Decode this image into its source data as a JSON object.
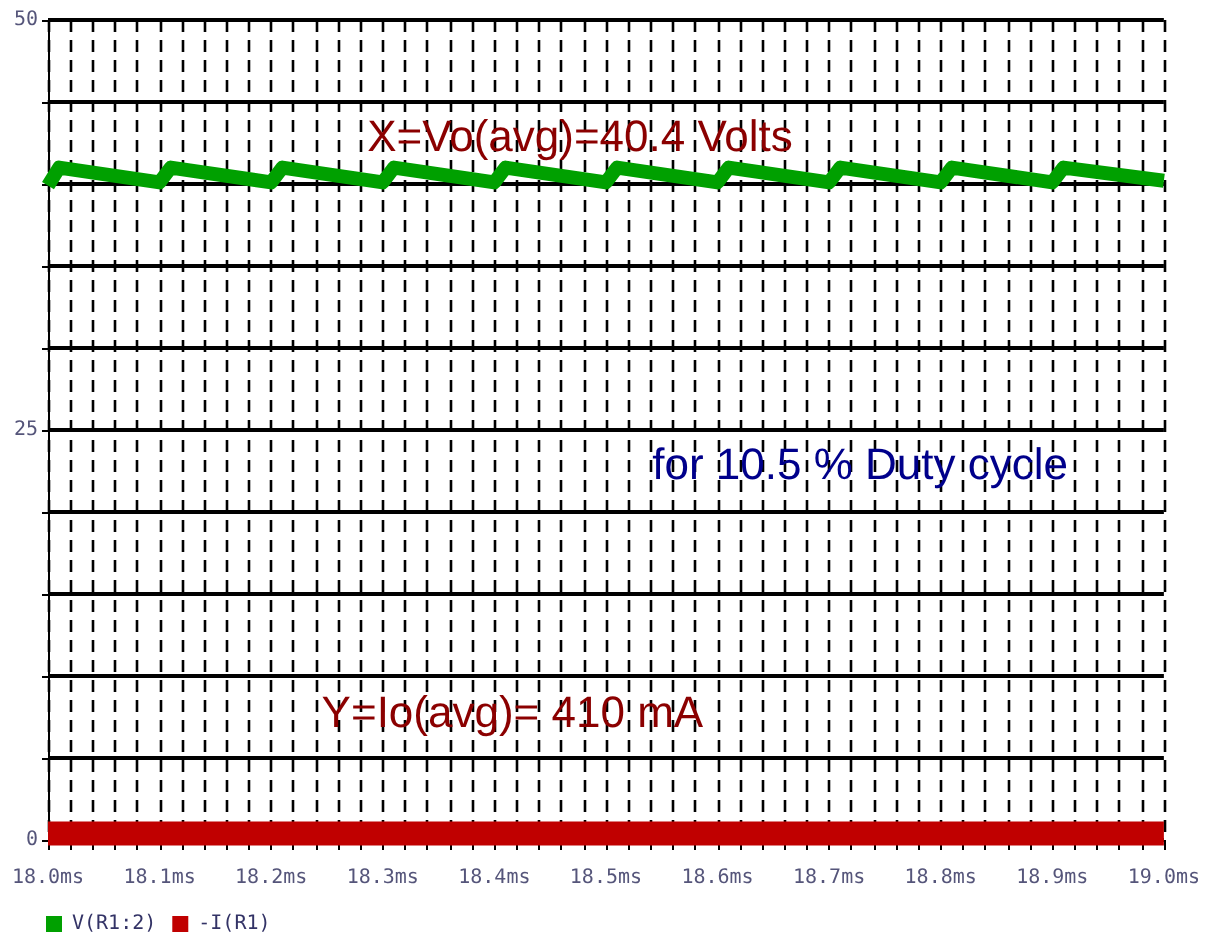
{
  "chart_data": {
    "type": "line",
    "x": [
      18.0,
      18.01,
      18.1,
      18.11,
      18.2,
      18.21,
      18.3,
      18.31,
      18.4,
      18.41,
      18.5,
      18.51,
      18.6,
      18.61,
      18.7,
      18.71,
      18.8,
      18.81,
      18.9,
      18.91,
      19.0
    ],
    "series": [
      {
        "name": "V(R1:2)",
        "color": "#00a000",
        "values": [
          39.9,
          41.0,
          40.1,
          41.0,
          40.1,
          41.0,
          40.1,
          41.0,
          40.1,
          41.0,
          40.1,
          41.0,
          40.1,
          41.0,
          40.1,
          41.0,
          40.1,
          41.0,
          40.1,
          41.0,
          40.2
        ]
      },
      {
        "name": "-I(R1)",
        "color": "#c00000",
        "x": [
          18.0,
          19.0
        ],
        "values": [
          0.4,
          0.4
        ]
      }
    ],
    "xlim": [
      18.0,
      19.0
    ],
    "xticks": [
      {
        "value": 18.0,
        "label": "18.0ms"
      },
      {
        "value": 18.02,
        "label": null
      },
      {
        "value": 18.04,
        "label": null
      },
      {
        "value": 18.06,
        "label": null
      },
      {
        "value": 18.08,
        "label": null
      },
      {
        "value": 18.1,
        "label": "18.1ms"
      },
      {
        "value": 18.12,
        "label": null
      },
      {
        "value": 18.14,
        "label": null
      },
      {
        "value": 18.16,
        "label": null
      },
      {
        "value": 18.18,
        "label": null
      },
      {
        "value": 18.2,
        "label": "18.2ms"
      },
      {
        "value": 18.22,
        "label": null
      },
      {
        "value": 18.24,
        "label": null
      },
      {
        "value": 18.26,
        "label": null
      },
      {
        "value": 18.28,
        "label": null
      },
      {
        "value": 18.3,
        "label": "18.3ms"
      },
      {
        "value": 18.32,
        "label": null
      },
      {
        "value": 18.34,
        "label": null
      },
      {
        "value": 18.36,
        "label": null
      },
      {
        "value": 18.38,
        "label": null
      },
      {
        "value": 18.4,
        "label": "18.4ms"
      },
      {
        "value": 18.42,
        "label": null
      },
      {
        "value": 18.44,
        "label": null
      },
      {
        "value": 18.46,
        "label": null
      },
      {
        "value": 18.48,
        "label": null
      },
      {
        "value": 18.5,
        "label": "18.5ms"
      },
      {
        "value": 18.52,
        "label": null
      },
      {
        "value": 18.54,
        "label": null
      },
      {
        "value": 18.56,
        "label": null
      },
      {
        "value": 18.58,
        "label": null
      },
      {
        "value": 18.6,
        "label": "18.6ms"
      },
      {
        "value": 18.62,
        "label": null
      },
      {
        "value": 18.64,
        "label": null
      },
      {
        "value": 18.66,
        "label": null
      },
      {
        "value": 18.68,
        "label": null
      },
      {
        "value": 18.7,
        "label": "18.7ms"
      },
      {
        "value": 18.72,
        "label": null
      },
      {
        "value": 18.74,
        "label": null
      },
      {
        "value": 18.76,
        "label": null
      },
      {
        "value": 18.78,
        "label": null
      },
      {
        "value": 18.8,
        "label": "18.8ms"
      },
      {
        "value": 18.82,
        "label": null
      },
      {
        "value": 18.84,
        "label": null
      },
      {
        "value": 18.86,
        "label": null
      },
      {
        "value": 18.88,
        "label": null
      },
      {
        "value": 18.9,
        "label": "18.9ms"
      },
      {
        "value": 18.92,
        "label": null
      },
      {
        "value": 18.94,
        "label": null
      },
      {
        "value": 18.96,
        "label": null
      },
      {
        "value": 18.98,
        "label": null
      },
      {
        "value": 19.0,
        "label": "19.0ms"
      }
    ],
    "ylim": [
      0,
      50
    ],
    "yticks": [
      0,
      {
        "value": 5,
        "label": null
      },
      {
        "value": 10,
        "label": null
      },
      {
        "value": 15,
        "label": null
      },
      {
        "value": 20,
        "label": null
      },
      25,
      {
        "value": 30,
        "label": null
      },
      {
        "value": 35,
        "label": null
      },
      {
        "value": 40,
        "label": null
      },
      {
        "value": 45,
        "label": null
      },
      50
    ],
    "annotations": [
      "X=Vo(avg)=40.4 Volts",
      "for 10.5 % Duty cycle",
      "Y=Io(avg)= 410 mA"
    ],
    "grid": true,
    "legend": "bottom left",
    "line_style": "solid"
  }
}
